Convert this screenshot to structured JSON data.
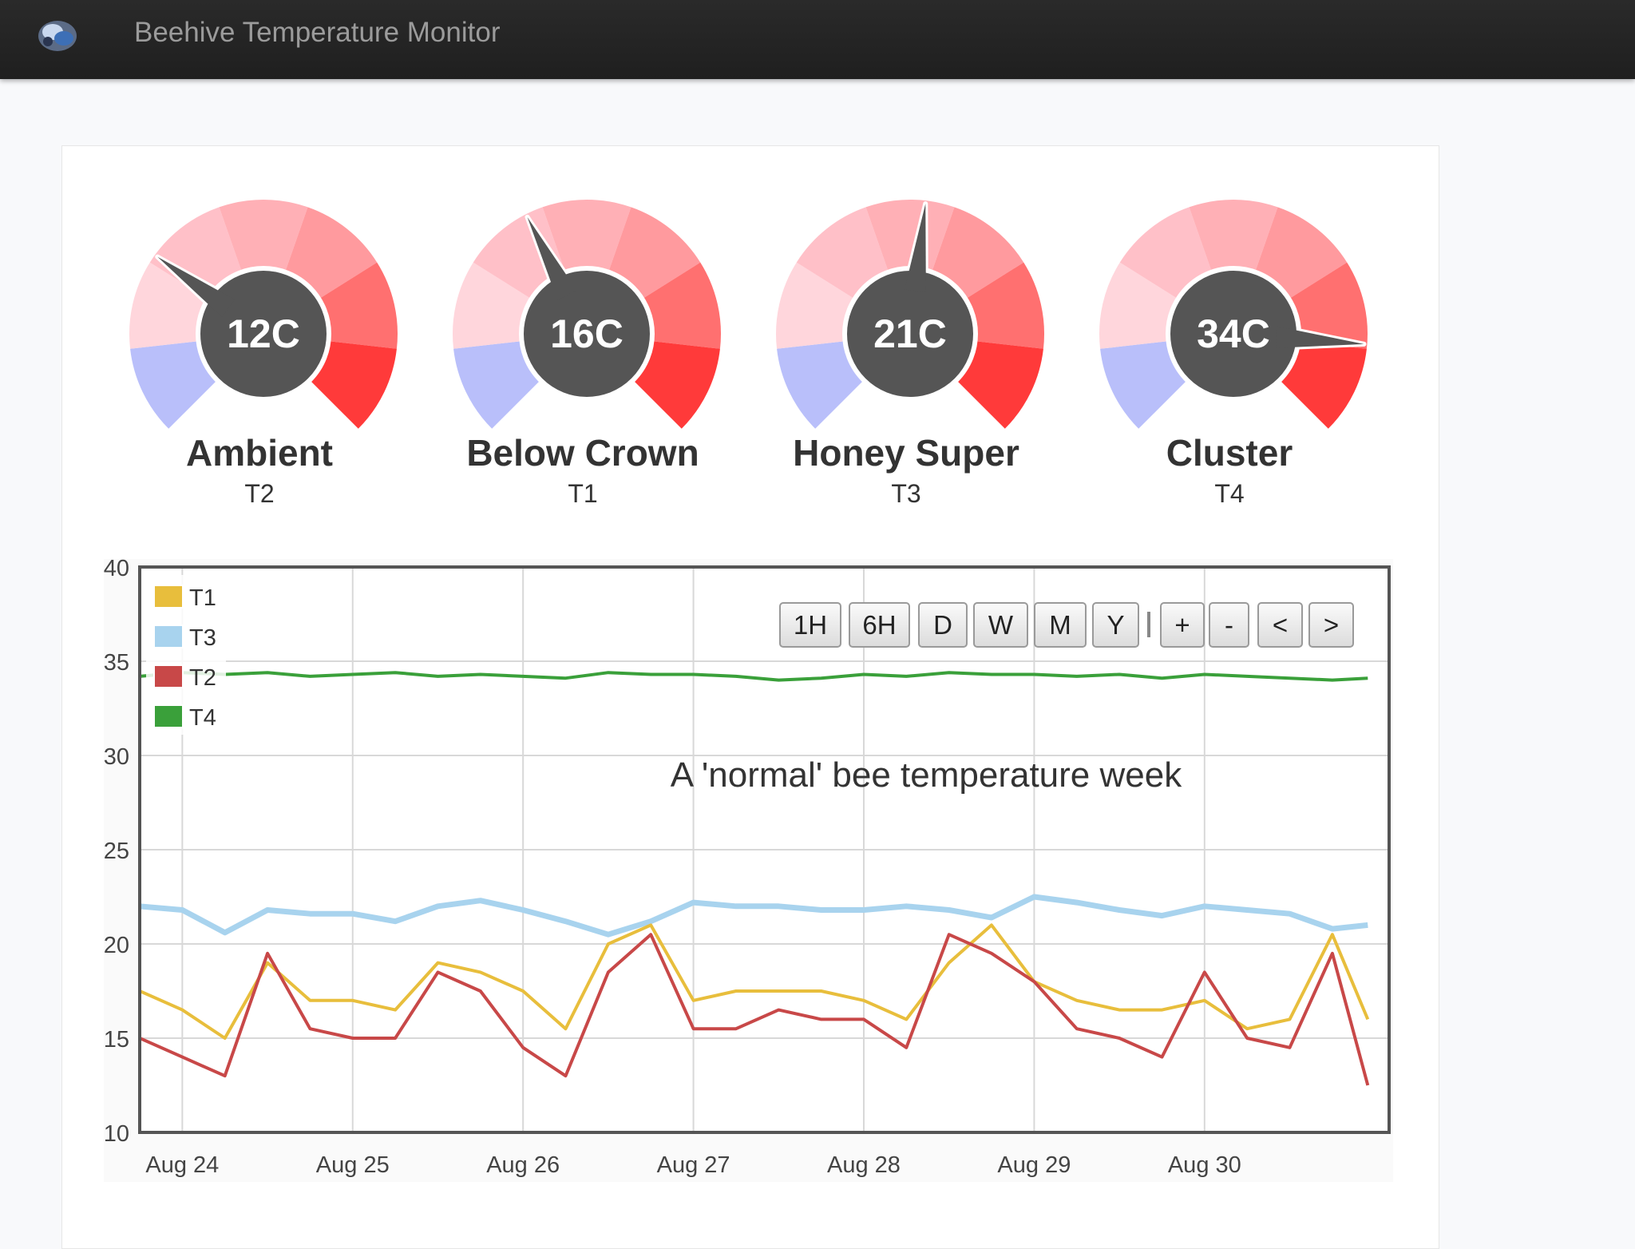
{
  "app": {
    "title": "Beehive Temperature Monitor",
    "logo_icon": "bee-logo-icon"
  },
  "gauges": [
    {
      "name": "Ambient",
      "sensor": "T2",
      "value": 12,
      "display": "12C"
    },
    {
      "name": "Below Crown",
      "sensor": "T1",
      "value": 16,
      "display": "16C"
    },
    {
      "name": "Honey Super",
      "sensor": "T3",
      "value": 21,
      "display": "21C"
    },
    {
      "name": "Cluster",
      "sensor": "T4",
      "value": 34,
      "display": "34C"
    }
  ],
  "controls": [
    "1H",
    "6H",
    "D",
    "W",
    "M",
    "Y",
    "+",
    "-",
    "<",
    ">"
  ],
  "chart_data": {
    "type": "line",
    "title": "A 'normal' bee temperature week",
    "ylim": [
      10,
      40
    ],
    "yticks": [
      "40",
      "35",
      "30",
      "25",
      "20",
      "15",
      "10"
    ],
    "xticks": [
      "Aug 24",
      "Aug 25",
      "Aug 26",
      "Aug 27",
      "Aug 28",
      "Aug 29",
      "Aug 30"
    ],
    "x": [
      "Aug 23 18:00",
      "Aug 24 00:00",
      "Aug 24 06:00",
      "Aug 24 12:00",
      "Aug 24 18:00",
      "Aug 25 00:00",
      "Aug 25 06:00",
      "Aug 25 12:00",
      "Aug 25 18:00",
      "Aug 26 00:00",
      "Aug 26 06:00",
      "Aug 26 12:00",
      "Aug 26 18:00",
      "Aug 27 00:00",
      "Aug 27 06:00",
      "Aug 27 12:00",
      "Aug 27 18:00",
      "Aug 28 00:00",
      "Aug 28 06:00",
      "Aug 28 12:00",
      "Aug 28 18:00",
      "Aug 29 00:00",
      "Aug 29 06:00",
      "Aug 29 12:00",
      "Aug 29 18:00",
      "Aug 30 00:00",
      "Aug 30 06:00",
      "Aug 30 12:00",
      "Aug 30 18:00",
      "Aug 30 23:00"
    ],
    "series": [
      {
        "name": "T1",
        "color": "#e8be3c",
        "values": [
          17.5,
          16.5,
          15,
          19,
          17,
          17,
          16.5,
          19,
          18.5,
          17.5,
          15.5,
          20,
          21,
          17,
          17.5,
          17.5,
          17.5,
          17,
          16,
          19,
          21,
          18,
          17,
          16.5,
          16.5,
          17,
          15.5,
          16,
          20.5,
          16
        ]
      },
      {
        "name": "T3",
        "color": "#a8d3ee",
        "values": [
          22,
          21.8,
          20.6,
          21.8,
          21.6,
          21.6,
          21.2,
          22,
          22.3,
          21.8,
          21.2,
          20.5,
          21.2,
          22.2,
          22,
          22,
          21.8,
          21.8,
          22,
          21.8,
          21.4,
          22.5,
          22.2,
          21.8,
          21.5,
          22,
          21.8,
          21.6,
          20.8,
          21
        ]
      },
      {
        "name": "T2",
        "color": "#c84848",
        "values": [
          15,
          14,
          13,
          19.5,
          15.5,
          15,
          15,
          18.5,
          17.5,
          14.5,
          13,
          18.5,
          20.5,
          15.5,
          15.5,
          16.5,
          16,
          16,
          14.5,
          20.5,
          19.5,
          18,
          15.5,
          15,
          14,
          18.5,
          15,
          14.5,
          19.5,
          12.5
        ]
      },
      {
        "name": "T4",
        "color": "#3aa03a",
        "values": [
          34.2,
          34.4,
          34.3,
          34.4,
          34.2,
          34.3,
          34.4,
          34.2,
          34.3,
          34.2,
          34.1,
          34.4,
          34.3,
          34.3,
          34.2,
          34,
          34.1,
          34.3,
          34.2,
          34.4,
          34.3,
          34.3,
          34.2,
          34.3,
          34.1,
          34.3,
          34.2,
          34.1,
          34,
          34.1
        ]
      }
    ]
  }
}
